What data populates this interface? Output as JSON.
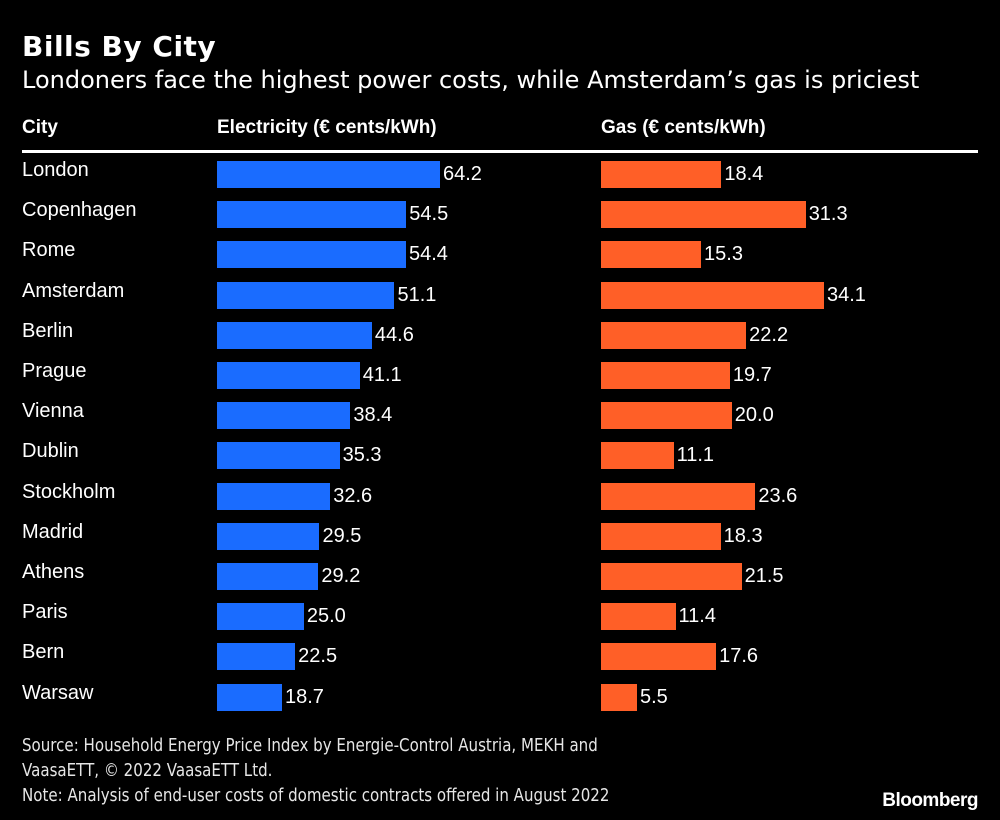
{
  "header": {
    "title": "Bills By City",
    "subtitle": "Londoners face the highest power costs, while Amsterdam’s gas is priciest"
  },
  "chart_data": {
    "type": "bar",
    "title": "Bills By City",
    "subtitle": "Londoners face the highest power costs, while Amsterdam’s gas is priciest",
    "category_header": "City",
    "categories": [
      "London",
      "Copenhagen",
      "Rome",
      "Amsterdam",
      "Berlin",
      "Prague",
      "Vienna",
      "Dublin",
      "Stockholm",
      "Madrid",
      "Athens",
      "Paris",
      "Bern",
      "Warsaw"
    ],
    "series": [
      {
        "name": "Electricity (€ cents/kWh)",
        "color": "#1a6cff",
        "values": [
          64.2,
          54.5,
          54.4,
          51.1,
          44.6,
          41.1,
          38.4,
          35.3,
          32.6,
          29.5,
          29.2,
          25.0,
          22.5,
          18.7
        ]
      },
      {
        "name": "Gas (€ cents/kWh)",
        "color": "#ff5f27",
        "values": [
          18.4,
          31.3,
          15.3,
          34.1,
          22.2,
          19.7,
          20.0,
          11.1,
          23.6,
          18.3,
          21.5,
          11.4,
          17.6,
          5.5
        ]
      }
    ],
    "orientation": "horizontal",
    "grid": false
  },
  "footer": {
    "source_line1": "Source: Household Energy Price Index by Energie-Control Austria, MEKH and",
    "source_line2": "VaasaETT, © 2022 VaasaETT Ltd.",
    "note": "Note: Analysis of end-user costs of domestic contracts offered in August 2022",
    "brand": "Bloomberg"
  }
}
